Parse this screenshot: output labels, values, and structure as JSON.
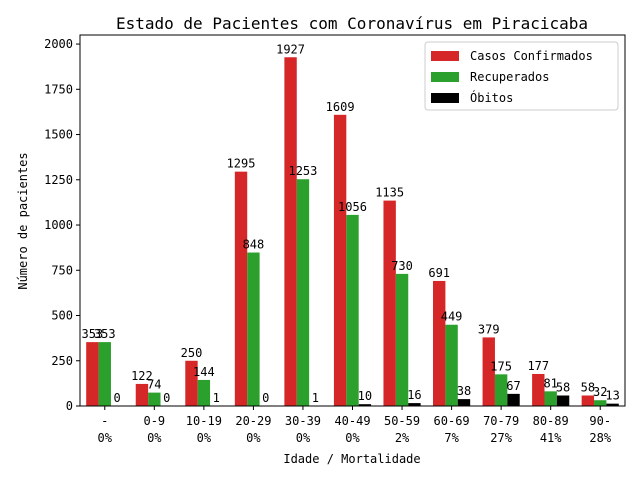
{
  "chart_data": {
    "type": "bar",
    "title": "Estado de Pacientes com Coronavírus em Piracicaba",
    "xlabel": "Idade / Mortalidade",
    "ylabel": "Número de pacientes",
    "categories": [
      "-",
      "0-9",
      "10-19",
      "20-29",
      "30-39",
      "40-49",
      "50-59",
      "60-69",
      "70-79",
      "80-89",
      "90-"
    ],
    "mortality": [
      "0%",
      "0%",
      "0%",
      "0%",
      "0%",
      "0%",
      "2%",
      "7%",
      "27%",
      "41%",
      "28%"
    ],
    "series": [
      {
        "name": "Casos Confirmados",
        "color": "#d62728",
        "values": [
          353,
          122,
          250,
          1295,
          1927,
          1609,
          1135,
          691,
          379,
          177,
          58
        ]
      },
      {
        "name": "Recuperados",
        "color": "#2ca02c",
        "values": [
          353,
          74,
          144,
          848,
          1253,
          1056,
          730,
          449,
          175,
          81,
          32
        ]
      },
      {
        "name": "Óbitos",
        "color": "#000000",
        "values": [
          0,
          0,
          1,
          0,
          1,
          10,
          16,
          38,
          67,
          58,
          13
        ]
      }
    ],
    "ylim": [
      0,
      2050
    ],
    "yticks": [
      0,
      250,
      500,
      750,
      1000,
      1250,
      1500,
      1750,
      2000
    ],
    "legend": "top-right",
    "grid": false
  }
}
